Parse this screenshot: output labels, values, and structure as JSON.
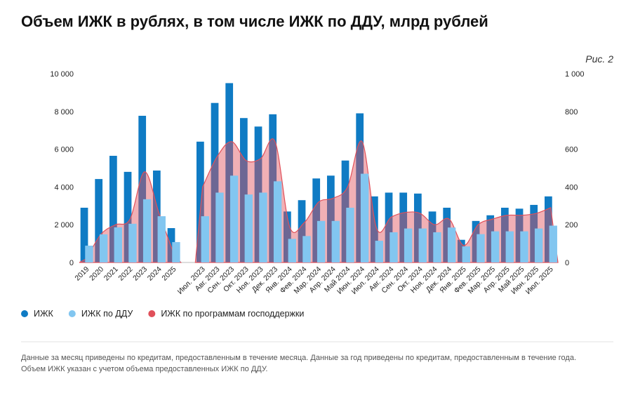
{
  "chart_data": [
    {
      "type": "bar",
      "title": "Объем ИЖК в рублях, в том числе ИЖК по ДДУ, млрд рублей",
      "figure_label": "Рис. 2",
      "note": "Данные за месяц приведены по кредитам, предоставленным в течение месяца. Данные за год приведены по кредитам, предоставленным в течение года. Объем ИЖК указан с учетом объема предоставленных ИЖК по ДДУ.",
      "categories": [
        "2019",
        "2020",
        "2021",
        "2022",
        "2023",
        "2024",
        "2025"
      ],
      "series": [
        {
          "name": "ИЖК",
          "color": "#0f7bc4",
          "values": [
            2900,
            4420,
            5650,
            4800,
            7770,
            4870,
            1820
          ]
        },
        {
          "name": "ИЖК по ДДУ",
          "color": "#82c6f0",
          "values": [
            890,
            1490,
            1860,
            2050,
            3350,
            2450,
            1080
          ]
        },
        {
          "name": "ИЖК по программам господдержки",
          "color": "#e0505a",
          "type": "area",
          "values": [
            200,
            1500,
            2000,
            2300,
            4800,
            2600,
            500
          ]
        }
      ],
      "ylim": [
        0,
        10000
      ],
      "yticks": [
        0,
        {
          "value": 2000,
          "label": "2 000"
        },
        {
          "value": 4000,
          "label": "4 000"
        },
        {
          "value": 6000,
          "label": "6 000"
        },
        {
          "value": 8000,
          "label": "8 000"
        },
        {
          "value": 10000,
          "label": "10 000"
        }
      ]
    },
    {
      "type": "bar",
      "categories": [
        "Июл. 2023",
        "Авг. 2023",
        "Сен. 2023",
        "Окт. 2023",
        "Ноя. 2023",
        "Дек. 2023",
        "Янв. 2024",
        "Фев. 2024",
        "Мар. 2024",
        "Апр. 2024",
        "Май 2024",
        "Июн. 2024",
        "Июл. 2024",
        "Авг. 2024",
        "Сен. 2024",
        "Окт. 2024",
        "Ноя. 2024",
        "Дек. 2024",
        "Янв. 2025",
        "Фев. 2025",
        "Мар. 2025",
        "Апр. 2025",
        "Май 2025",
        "Июн. 2025",
        "Июл. 2025"
      ],
      "series": [
        {
          "color": "#0f7bc4",
          "axis": "y2",
          "values": [
            640,
            845,
            950,
            765,
            720,
            785,
            270,
            330,
            445,
            460,
            540,
            790,
            350,
            370,
            370,
            365,
            270,
            290,
            120,
            220,
            250,
            290,
            285,
            305,
            350
          ]
        },
        {
          "color": "#82c6f0",
          "axis": "y2",
          "values": [
            245,
            370,
            460,
            360,
            370,
            430,
            125,
            140,
            220,
            220,
            290,
            470,
            115,
            160,
            180,
            180,
            160,
            185,
            85,
            150,
            165,
            165,
            165,
            180,
            195
          ]
        },
        {
          "color": "#e0505a",
          "axis": "y2",
          "type": "area",
          "values": [
            400,
            560,
            640,
            540,
            550,
            640,
            190,
            210,
            320,
            340,
            400,
            640,
            180,
            240,
            265,
            260,
            200,
            230,
            90,
            200,
            230,
            250,
            250,
            260,
            290
          ]
        }
      ],
      "y2lim": [
        0,
        1000
      ],
      "y2ticks": [
        0,
        200,
        400,
        600,
        800,
        {
          "value": 1000,
          "label": "1 000"
        }
      ]
    }
  ]
}
